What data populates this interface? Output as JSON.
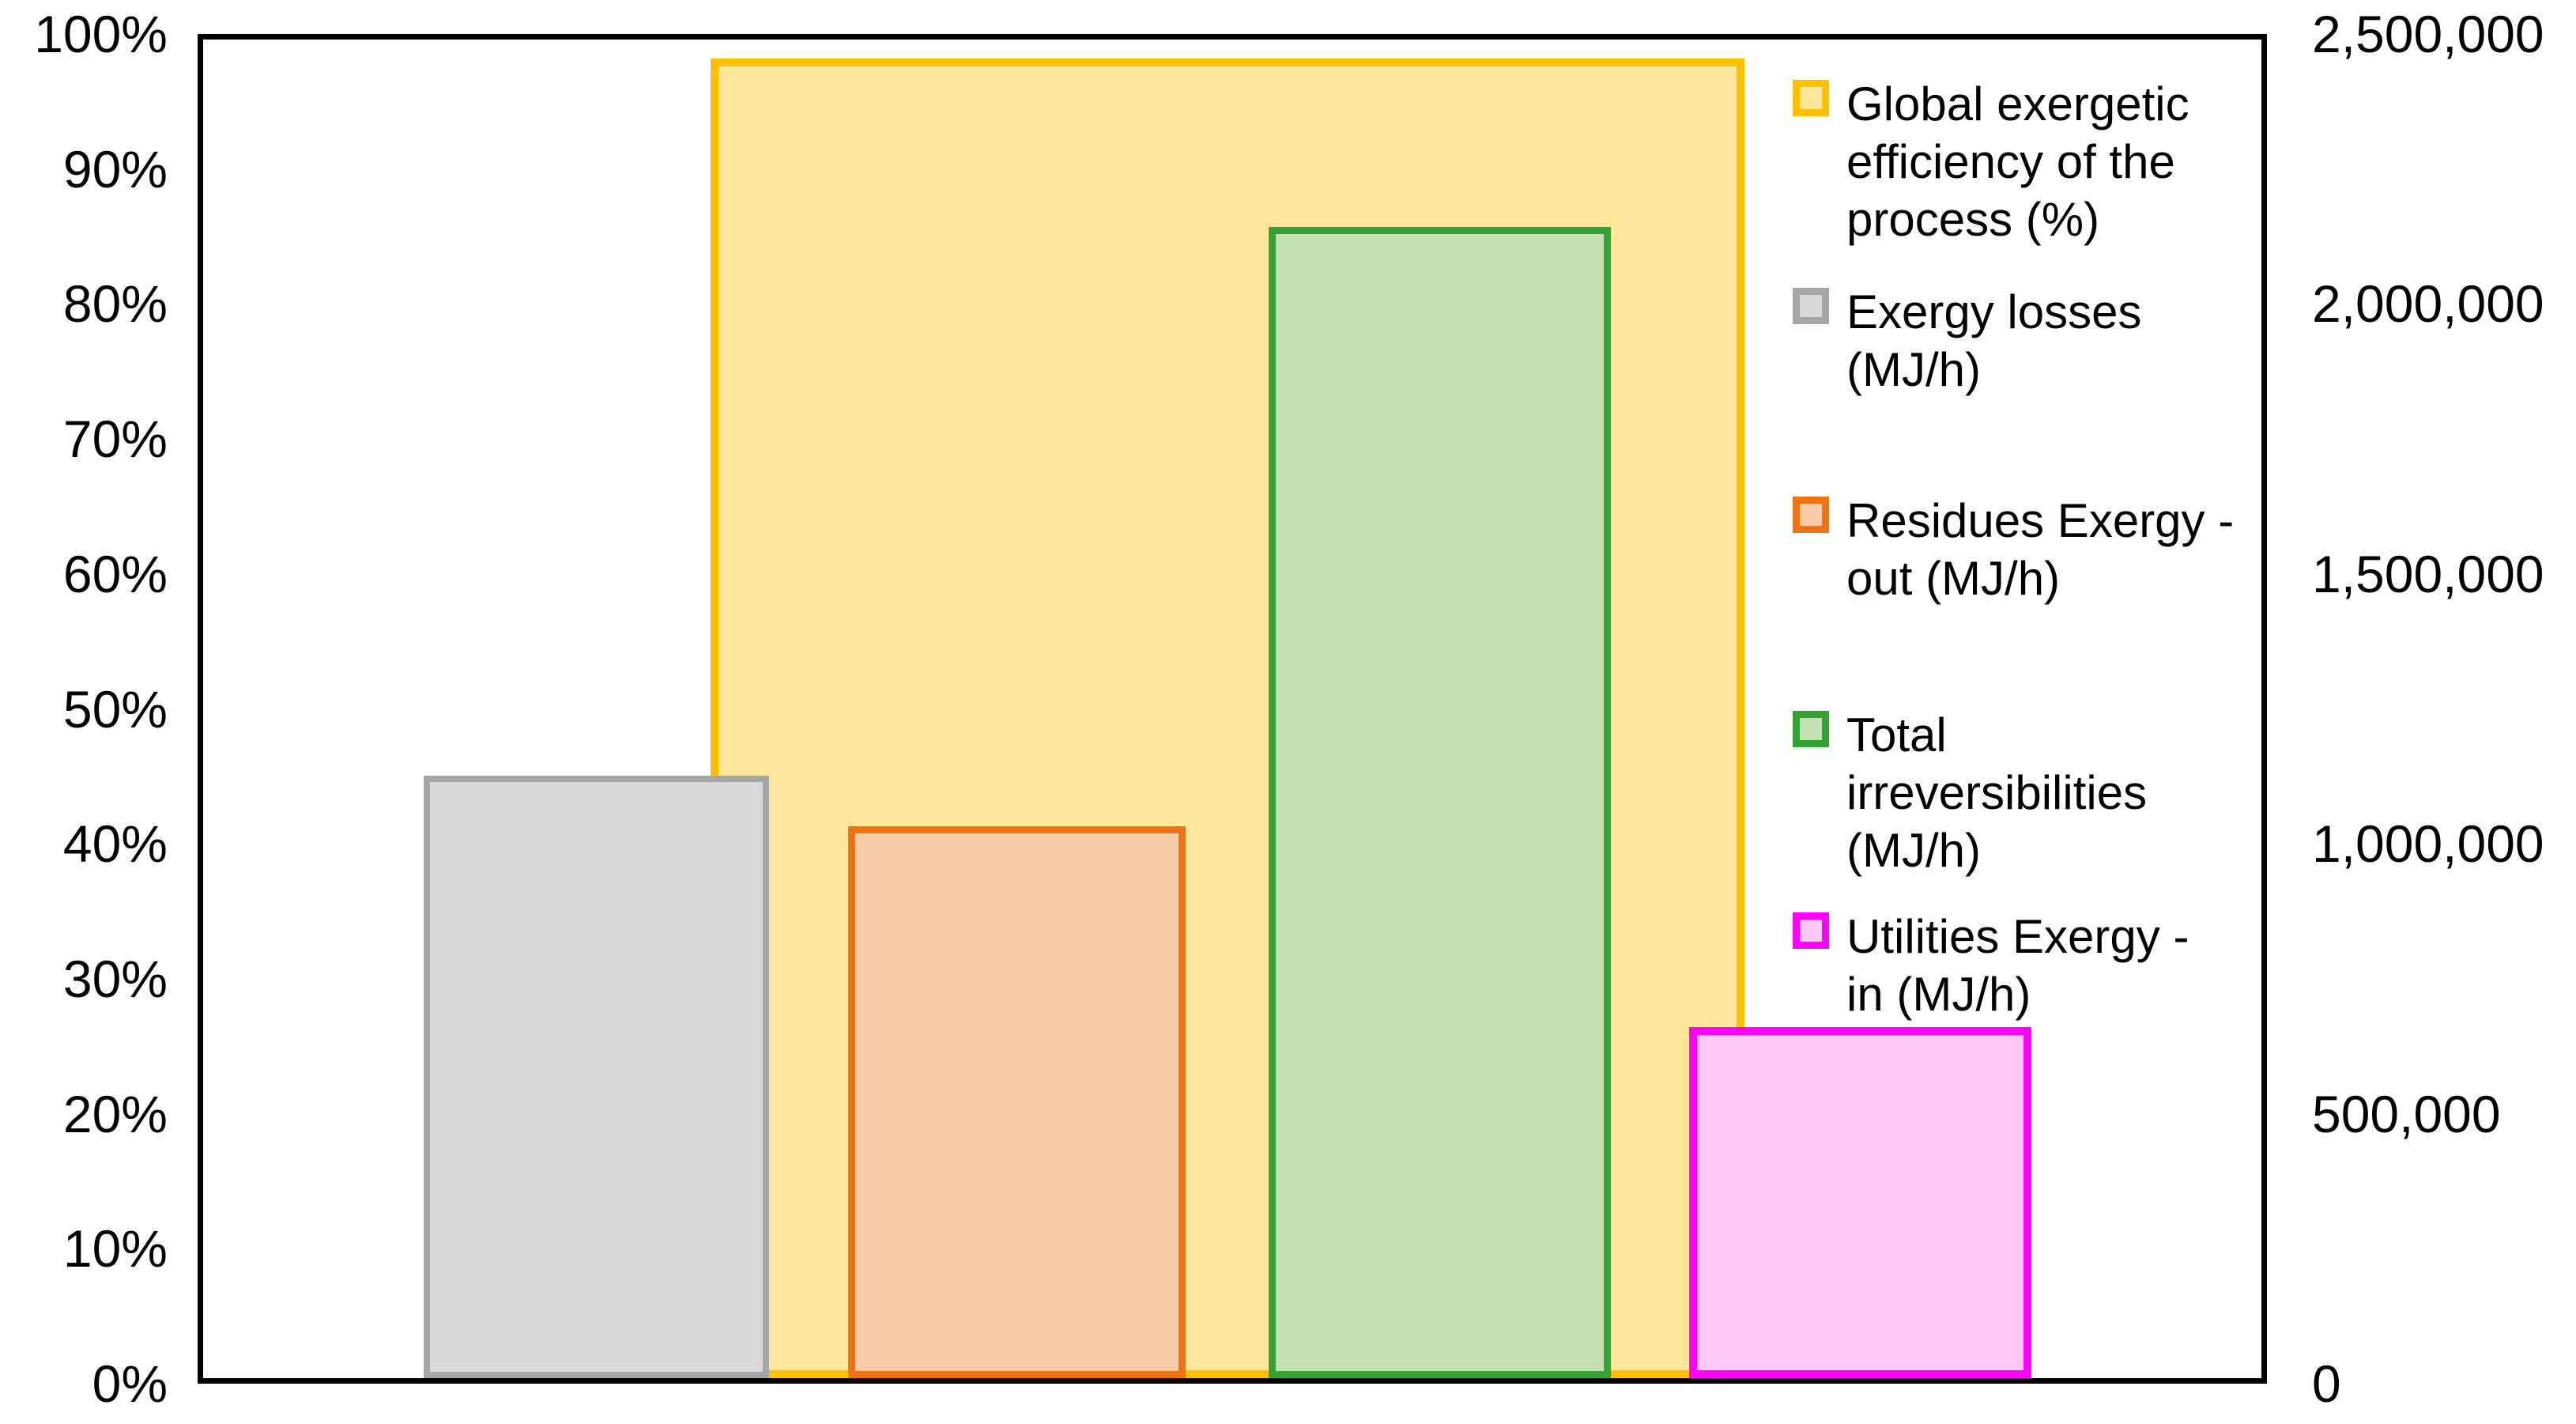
{
  "chart_data": {
    "type": "bar",
    "title": "",
    "xlabel": "",
    "ylabel_left": "%",
    "ylabel_right": "MJ/h",
    "grid": false,
    "legend_position": "right",
    "left_axis": {
      "min": 0,
      "max": 100,
      "unit": "%",
      "ticks_top_to_bottom": [
        "100%",
        "90%",
        "80%",
        "70%",
        "60%",
        "50%",
        "40%",
        "30%",
        "20%",
        "10%",
        "0%"
      ]
    },
    "right_axis": {
      "min": 0,
      "max": 2500000,
      "unit": "MJ/h",
      "ticks_top_to_bottom": [
        "2,500,000",
        "2,000,000",
        "1,500,000",
        "1,000,000",
        "500,000",
        "0"
      ]
    },
    "series": [
      {
        "name": "Global exergetic efficiency of the process (%)",
        "axis": "left",
        "value": 98.6,
        "unit": "%",
        "fill": "#FFE699",
        "border": "#FFC000",
        "border_px": 10,
        "x_left_frac": 0.2464,
        "width_frac": 0.5023,
        "z": 1,
        "pattern": false
      },
      {
        "name": "Exergy losses (MJ/h)",
        "axis": "right",
        "value": 1125000,
        "unit": "MJ/h",
        "fill": "#D9D9D9",
        "border": "#A6A6A6",
        "border_px": 8,
        "x_left_frac": 0.1073,
        "width_frac": 0.1677,
        "z": 2,
        "pattern": true
      },
      {
        "name": "Residues Exergy - out (MJ/h)",
        "axis": "right",
        "value": 1030000,
        "unit": "MJ/h",
        "fill": "#F9CBAA",
        "border": "#F07313",
        "border_px": 9,
        "x_left_frac": 0.3132,
        "width_frac": 0.1642,
        "z": 2,
        "pattern": false
      },
      {
        "name": "Total irreversibilities (MJ/h)",
        "axis": "right",
        "value": 2150000,
        "unit": "MJ/h",
        "fill": "#C6E0B4",
        "border": "#33A333",
        "border_px": 9,
        "x_left_frac": 0.5176,
        "width_frac": 0.1662,
        "z": 2,
        "pattern": false
      },
      {
        "name": "Utilities Exergy - in (MJ/h)",
        "axis": "right",
        "value": 655000,
        "unit": "MJ/h",
        "fill": "#FCC7F0",
        "border": "#FF00FF",
        "border_px": 10,
        "x_left_frac": 0.7219,
        "width_frac": 0.1665,
        "z": 2,
        "pattern": false
      }
    ],
    "legend": [
      {
        "label_lines": [
          "Global exergetic",
          "efficiency of the",
          "process (%)"
        ],
        "fill": "#FFE699",
        "border": "#FFC000",
        "pattern": false
      },
      {
        "label_lines": [
          "Exergy losses",
          "(MJ/h)"
        ],
        "fill": "#D9D9D9",
        "border": "#A6A6A6",
        "pattern": true
      },
      {
        "label_lines": [
          "Residues Exergy -",
          "out  (MJ/h)"
        ],
        "fill": "#F9CBAA",
        "border": "#F07313",
        "pattern": false
      },
      {
        "label_lines": [
          "Total",
          "irreversibilities",
          "(MJ/h)"
        ],
        "fill": "#C6E0B4",
        "border": "#33A333",
        "pattern": false
      },
      {
        "label_lines": [
          "Utilities Exergy -",
          "in (MJ/h)"
        ],
        "fill": "#FCC7F0",
        "border": "#FF00FF",
        "pattern": false
      }
    ]
  }
}
